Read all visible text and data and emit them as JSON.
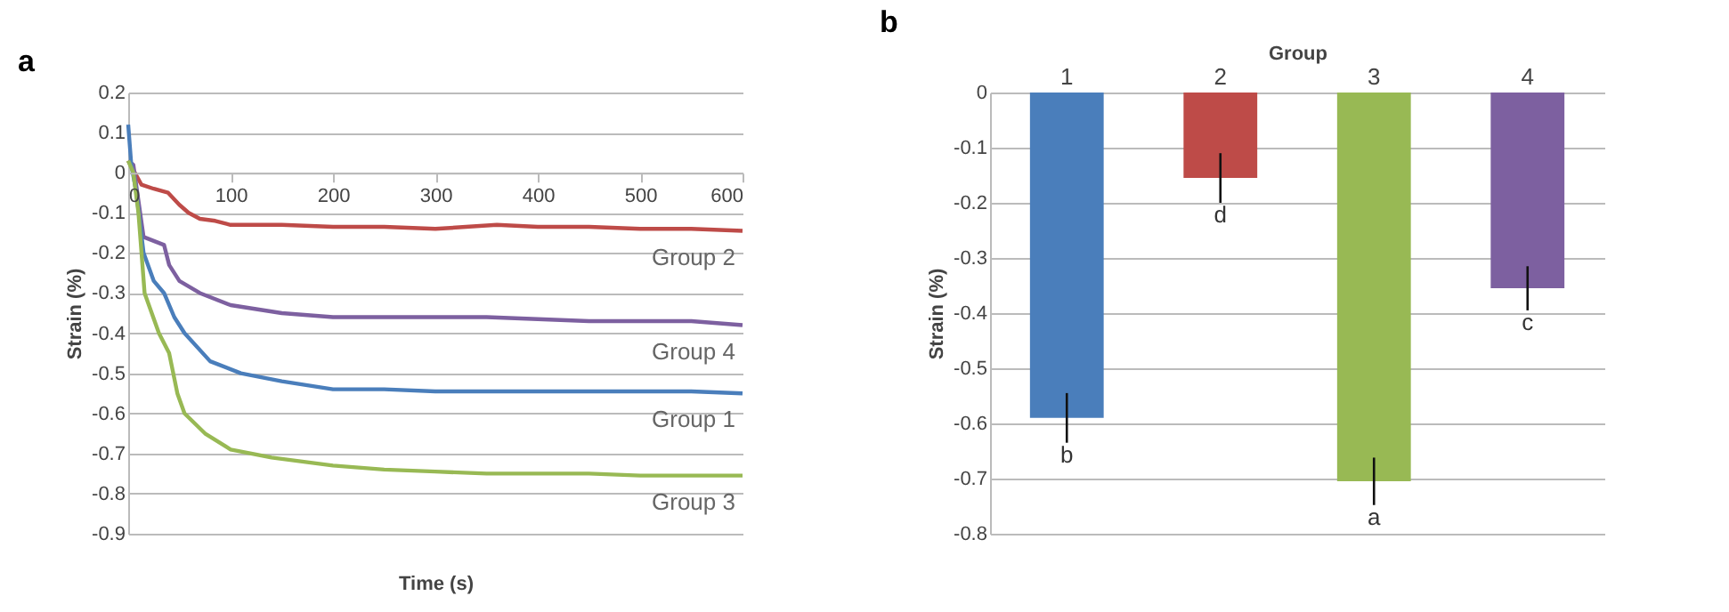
{
  "chart_data": [
    {
      "type": "line",
      "title": "a",
      "xlabel": "Time (s)",
      "ylabel": "Strain (%)",
      "xlim": [
        0,
        600
      ],
      "xticks": [
        0,
        100,
        200,
        300,
        400,
        500,
        600
      ],
      "ylim": [
        -0.9,
        0.2
      ],
      "yticks": [
        -0.9,
        -0.8,
        -0.7,
        -0.6,
        -0.5,
        -0.4,
        -0.3,
        -0.2,
        -0.1,
        0,
        0.1,
        0.2
      ],
      "grid": "y",
      "legend": false,
      "series": [
        {
          "name": "Group 2",
          "color": "#be4b48",
          "x": [
            0,
            13,
            25,
            39,
            50,
            59,
            70,
            85,
            100,
            150,
            200,
            250,
            300,
            360,
            400,
            450,
            500,
            550,
            600
          ],
          "values": [
            0.03,
            -0.03,
            -0.04,
            -0.05,
            -0.08,
            -0.1,
            -0.115,
            -0.12,
            -0.13,
            -0.13,
            -0.135,
            -0.135,
            -0.14,
            -0.13,
            -0.135,
            -0.135,
            -0.14,
            -0.14,
            -0.145
          ]
        },
        {
          "name": "Group 4",
          "color": "#7d60a0",
          "x": [
            0,
            5,
            15,
            35,
            40,
            50,
            70,
            100,
            150,
            200,
            250,
            300,
            350,
            400,
            450,
            500,
            550,
            600
          ],
          "values": [
            0.03,
            0.02,
            -0.16,
            -0.18,
            -0.23,
            -0.27,
            -0.3,
            -0.33,
            -0.35,
            -0.36,
            -0.36,
            -0.36,
            -0.36,
            -0.365,
            -0.37,
            -0.37,
            -0.37,
            -0.38
          ]
        },
        {
          "name": "Group 1",
          "color": "#4a7ebb",
          "x": [
            0,
            3,
            8,
            15,
            25,
            35,
            45,
            55,
            80,
            110,
            150,
            200,
            250,
            300,
            350,
            400,
            450,
            500,
            550,
            600
          ],
          "values": [
            0.12,
            0.02,
            -0.05,
            -0.2,
            -0.27,
            -0.3,
            -0.36,
            -0.4,
            -0.47,
            -0.5,
            -0.52,
            -0.54,
            -0.54,
            -0.545,
            -0.545,
            -0.545,
            -0.545,
            -0.545,
            -0.545,
            -0.55
          ]
        },
        {
          "name": "Group 3",
          "color": "#98b954",
          "x": [
            0,
            5,
            10,
            16,
            30,
            40,
            48,
            55,
            75,
            100,
            140,
            200,
            250,
            300,
            350,
            400,
            450,
            500,
            550,
            600
          ],
          "values": [
            0.03,
            0.0,
            -0.1,
            -0.3,
            -0.4,
            -0.45,
            -0.55,
            -0.6,
            -0.65,
            -0.69,
            -0.71,
            -0.73,
            -0.74,
            -0.745,
            -0.75,
            -0.75,
            -0.75,
            -0.755,
            -0.755,
            -0.755
          ]
        }
      ]
    },
    {
      "type": "bar",
      "title": "b",
      "xlabel": "Group",
      "ylabel": "Strain (%)",
      "categories": [
        "1",
        "2",
        "3",
        "4"
      ],
      "values": [
        -0.59,
        -0.155,
        -0.705,
        -0.355
      ],
      "colors": [
        "#4a7ebb",
        "#be4b48",
        "#98b954",
        "#7d60a0"
      ],
      "errors": [
        0.045,
        0.045,
        0.043,
        0.04
      ],
      "ylim": [
        -0.8,
        0
      ],
      "yticks": [
        -0.8,
        -0.7,
        -0.6,
        -0.5,
        -0.4,
        -0.3,
        -0.2,
        -0.1,
        0
      ],
      "grid": "y",
      "legend": false,
      "annotations": [
        "b",
        "d",
        "a",
        "c"
      ]
    }
  ]
}
